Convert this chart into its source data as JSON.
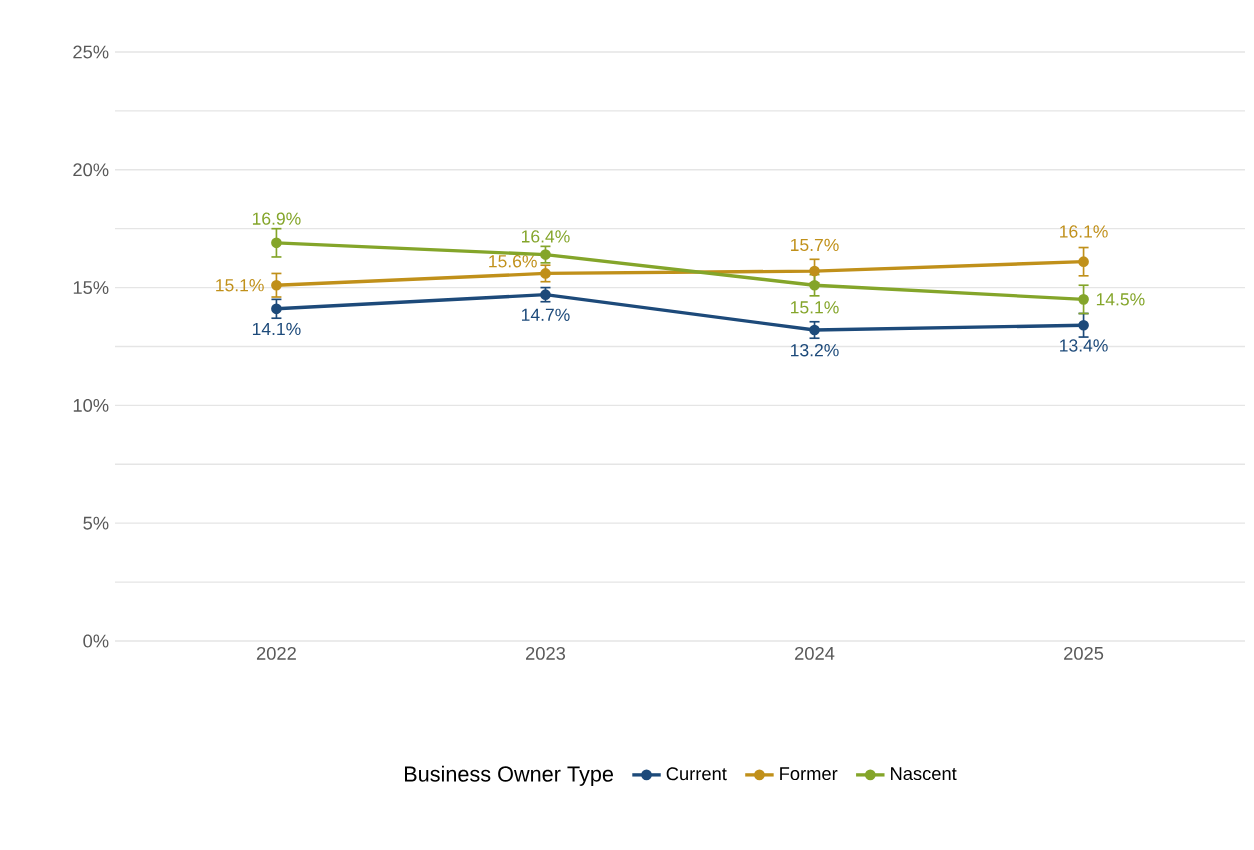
{
  "chart_data": {
    "type": "line",
    "categories": [
      "2022",
      "2023",
      "2024",
      "2025"
    ],
    "legend_title": "Business Owner Type",
    "series": [
      {
        "name": "Current",
        "color": "#1d4a7a",
        "values": [
          14.1,
          14.7,
          13.2,
          13.4
        ],
        "errors": [
          0.4,
          0.3,
          0.35,
          0.5
        ],
        "value_labels": [
          "14.1%",
          "14.7%",
          "13.2%",
          "13.4%"
        ]
      },
      {
        "name": "Former",
        "color": "#c0901a",
        "values": [
          15.1,
          15.6,
          15.7,
          16.1
        ],
        "errors": [
          0.5,
          0.35,
          0.5,
          0.6
        ],
        "value_labels": [
          "15.1%",
          "15.6%",
          "15.7%",
          "16.1%"
        ]
      },
      {
        "name": "Nascent",
        "color": "#84a52a",
        "values": [
          16.9,
          16.4,
          15.1,
          14.5
        ],
        "errors": [
          0.6,
          0.35,
          0.45,
          0.6
        ],
        "value_labels": [
          "16.9%",
          "16.4%",
          "15.1%",
          "14.5%"
        ]
      }
    ],
    "ylim": [
      0,
      25
    ],
    "yticks": [
      {
        "value": 0,
        "label": "0%"
      },
      {
        "value": 2.5,
        "label": null
      },
      {
        "value": 5,
        "label": "5%"
      },
      {
        "value": 7.5,
        "label": null
      },
      {
        "value": 10,
        "label": "10%"
      },
      {
        "value": 12.5,
        "label": null
      },
      {
        "value": 15,
        "label": "15%"
      },
      {
        "value": 17.5,
        "label": null
      },
      {
        "value": 20,
        "label": "20%"
      },
      {
        "value": 22.5,
        "label": null
      },
      {
        "value": 25,
        "label": "25%"
      }
    ],
    "grid": "y",
    "legend": "bottom",
    "marker": "circle",
    "line_style": "solid"
  }
}
